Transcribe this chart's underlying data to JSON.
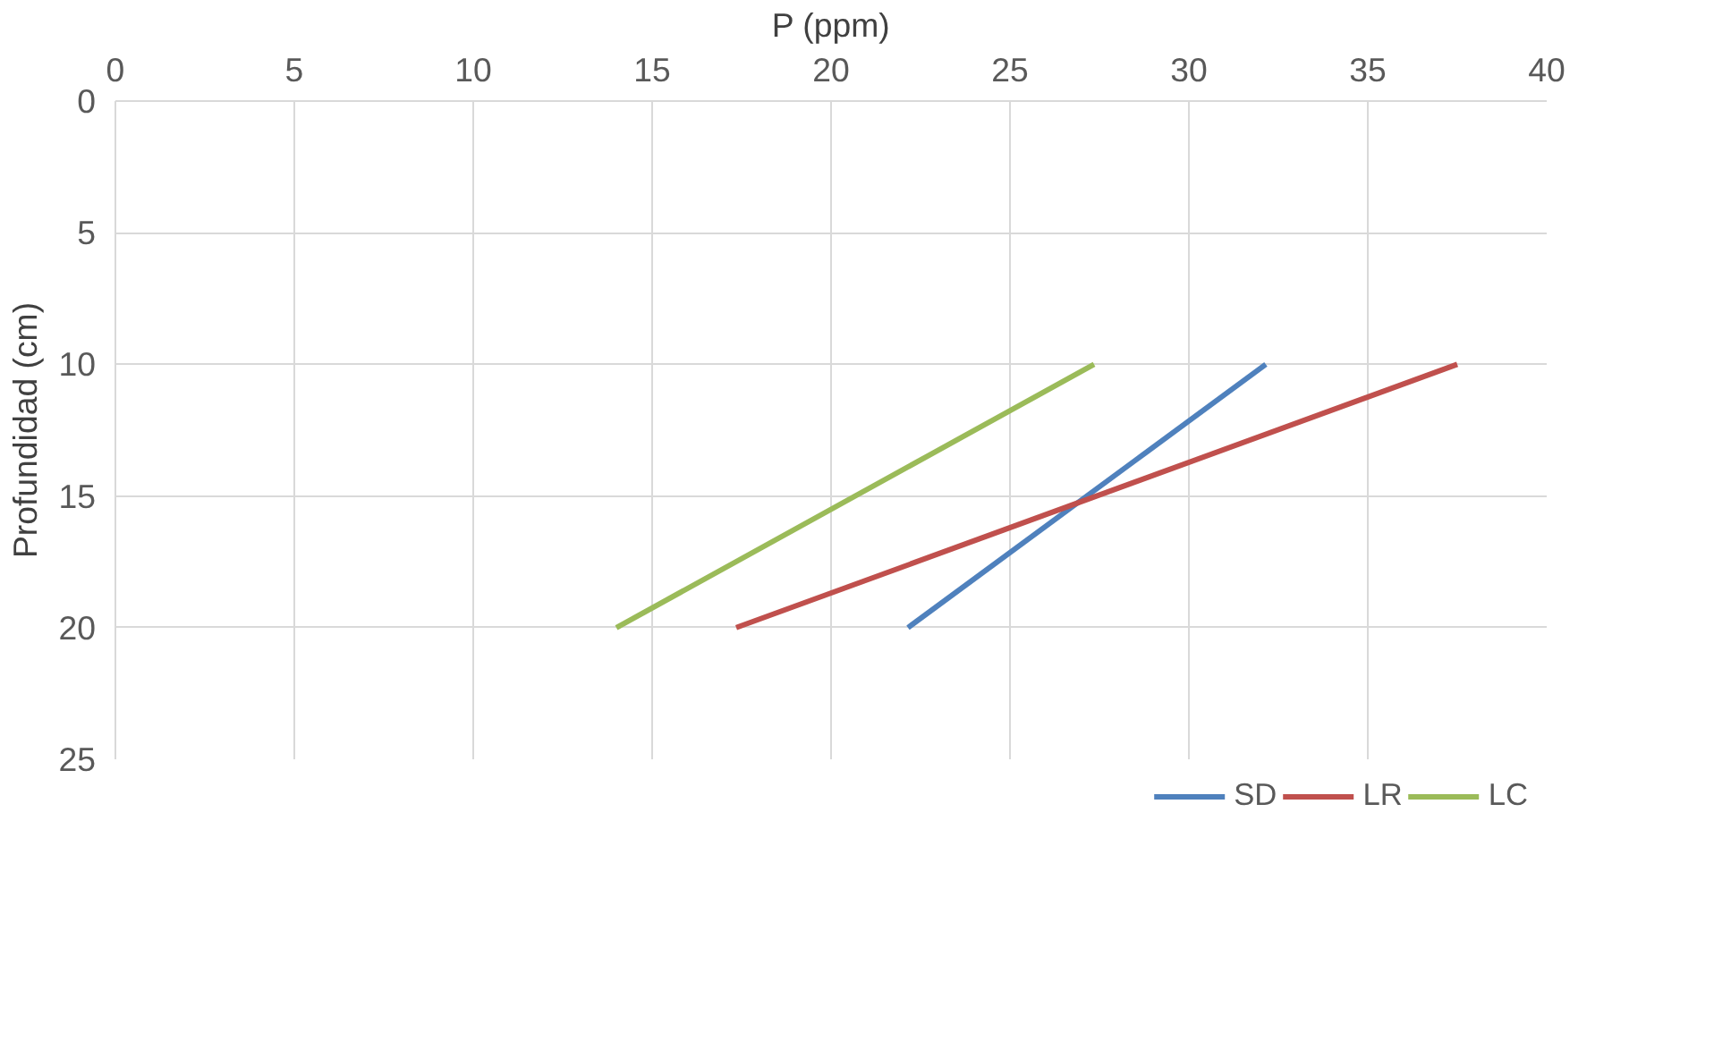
{
  "chart_data": {
    "type": "line",
    "xlabel": "P (ppm)",
    "ylabel": "Profundidad (cm)",
    "xlim": [
      0,
      40
    ],
    "xticks": [
      0,
      5,
      10,
      15,
      20,
      25,
      30,
      35,
      40
    ],
    "ylim": [
      25,
      0
    ],
    "yticks": [
      0,
      5,
      10,
      15,
      20,
      25
    ],
    "grid": true,
    "legend": "bottom",
    "marker": "none",
    "line_style": "solid",
    "series": [
      {
        "name": "SD",
        "color": "#4f81bd",
        "x": [
          32.15,
          22.15
        ],
        "values": [
          10,
          20
        ]
      },
      {
        "name": "LR",
        "color": "#c0504d",
        "x": [
          37.5,
          17.35
        ],
        "values": [
          10,
          20
        ]
      },
      {
        "name": "LC",
        "color": "#9bbb59",
        "x": [
          27.35,
          14.0
        ],
        "values": [
          10,
          20
        ]
      }
    ]
  }
}
